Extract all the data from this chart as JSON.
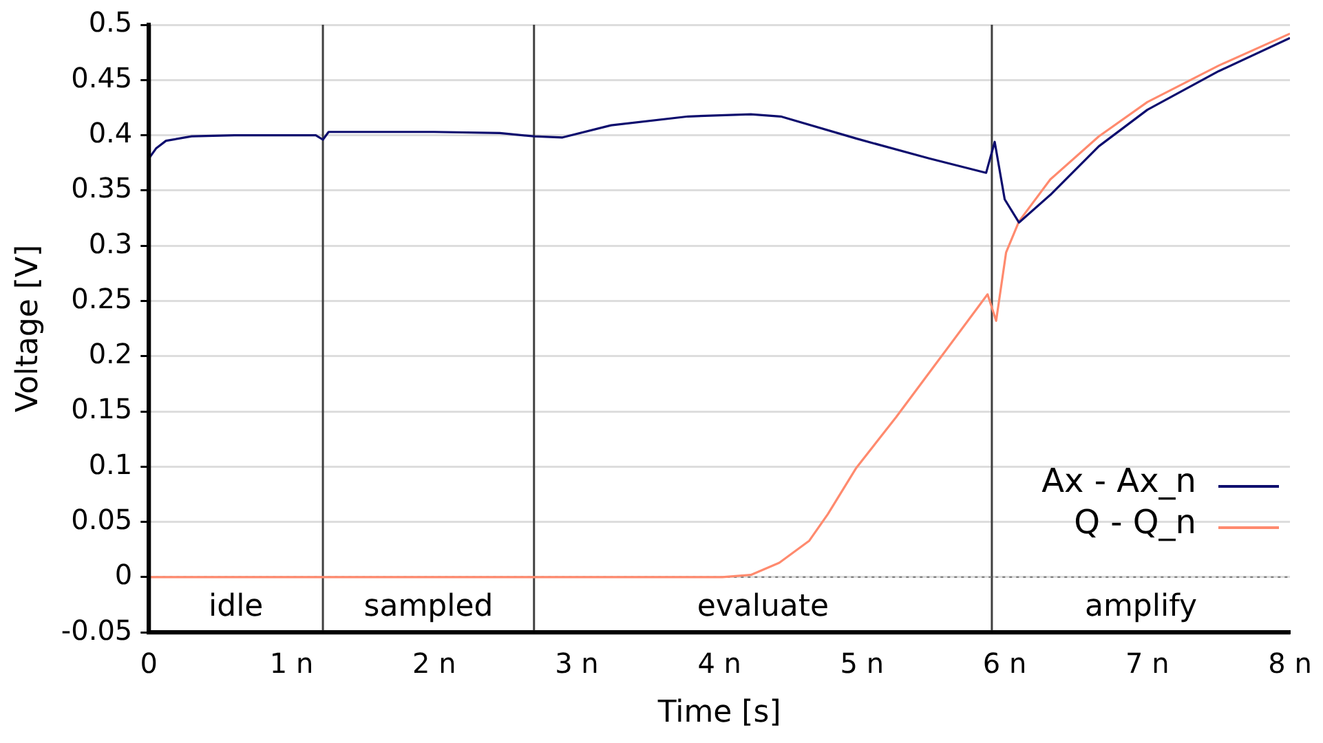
{
  "chart_data": {
    "type": "line",
    "xlabel": "Time [s]",
    "ylabel": "Voltage [V]",
    "xlim": [
      0,
      8
    ],
    "xticks": [
      0,
      {
        "value": 1,
        "label": "1 n"
      },
      {
        "value": 2,
        "label": "2 n"
      },
      {
        "value": 3,
        "label": "3 n"
      },
      {
        "value": 4,
        "label": "4 n"
      },
      {
        "value": 5,
        "label": "5 n"
      },
      {
        "value": 6,
        "label": "6 n"
      },
      {
        "value": 7,
        "label": "7 n"
      },
      {
        "value": 8,
        "label": "8 n"
      }
    ],
    "ylim": [
      -0.05,
      0.5
    ],
    "yticks": [
      -0.05,
      0,
      0.05,
      0.1,
      0.15,
      0.2,
      0.25,
      0.3,
      0.35,
      0.4,
      0.45,
      0.5
    ],
    "grid": "y",
    "legend": "bottom right",
    "marker": "none",
    "line_style": "solid",
    "series": [
      {
        "name": "Ax - Ax_n",
        "color": "#0d0d6e",
        "x": [
          0,
          0.05,
          0.12,
          0.3,
          0.6,
          1.0,
          1.17,
          1.22,
          1.26,
          1.5,
          2.0,
          2.46,
          2.7,
          2.9,
          3.24,
          3.78,
          4.22,
          4.43,
          4.96,
          5.47,
          5.87,
          5.93,
          6.0,
          6.1,
          6.32,
          6.66,
          7.0,
          7.5,
          8.0
        ],
        "values": [
          0.379,
          0.388,
          0.395,
          0.399,
          0.4,
          0.4,
          0.4,
          0.396,
          0.403,
          0.403,
          0.403,
          0.402,
          0.399,
          0.398,
          0.409,
          0.417,
          0.419,
          0.417,
          0.397,
          0.379,
          0.366,
          0.394,
          0.342,
          0.321,
          0.346,
          0.39,
          0.423,
          0.458,
          0.488
        ]
      },
      {
        "name": "Q - Q_n",
        "color": "#ff8a6e",
        "x": [
          0,
          1.0,
          2.0,
          3.0,
          4.02,
          4.22,
          4.42,
          4.63,
          4.76,
          4.96,
          5.24,
          5.54,
          5.88,
          5.94,
          6.01,
          6.1,
          6.32,
          6.66,
          7.0,
          7.5,
          8.0
        ],
        "values": [
          0,
          0,
          0,
          0,
          0,
          0.002,
          0.013,
          0.033,
          0.057,
          0.099,
          0.145,
          0.197,
          0.256,
          0.232,
          0.294,
          0.322,
          0.36,
          0.399,
          0.43,
          0.463,
          0.492
        ]
      }
    ],
    "ref_lines": [
      {
        "axis": "x",
        "value": 1.22,
        "color": "#404040",
        "line_style": "solid"
      },
      {
        "axis": "x",
        "value": 2.7,
        "color": "#404040",
        "line_style": "solid"
      },
      {
        "axis": "x",
        "value": 5.91,
        "color": "#404040",
        "line_style": "solid"
      },
      {
        "axis": "y",
        "value": 0,
        "color": "#808080",
        "line_style": "dotted"
      }
    ],
    "annotations": [
      "idle",
      "sampled",
      "evaluate",
      "amplify"
    ]
  }
}
